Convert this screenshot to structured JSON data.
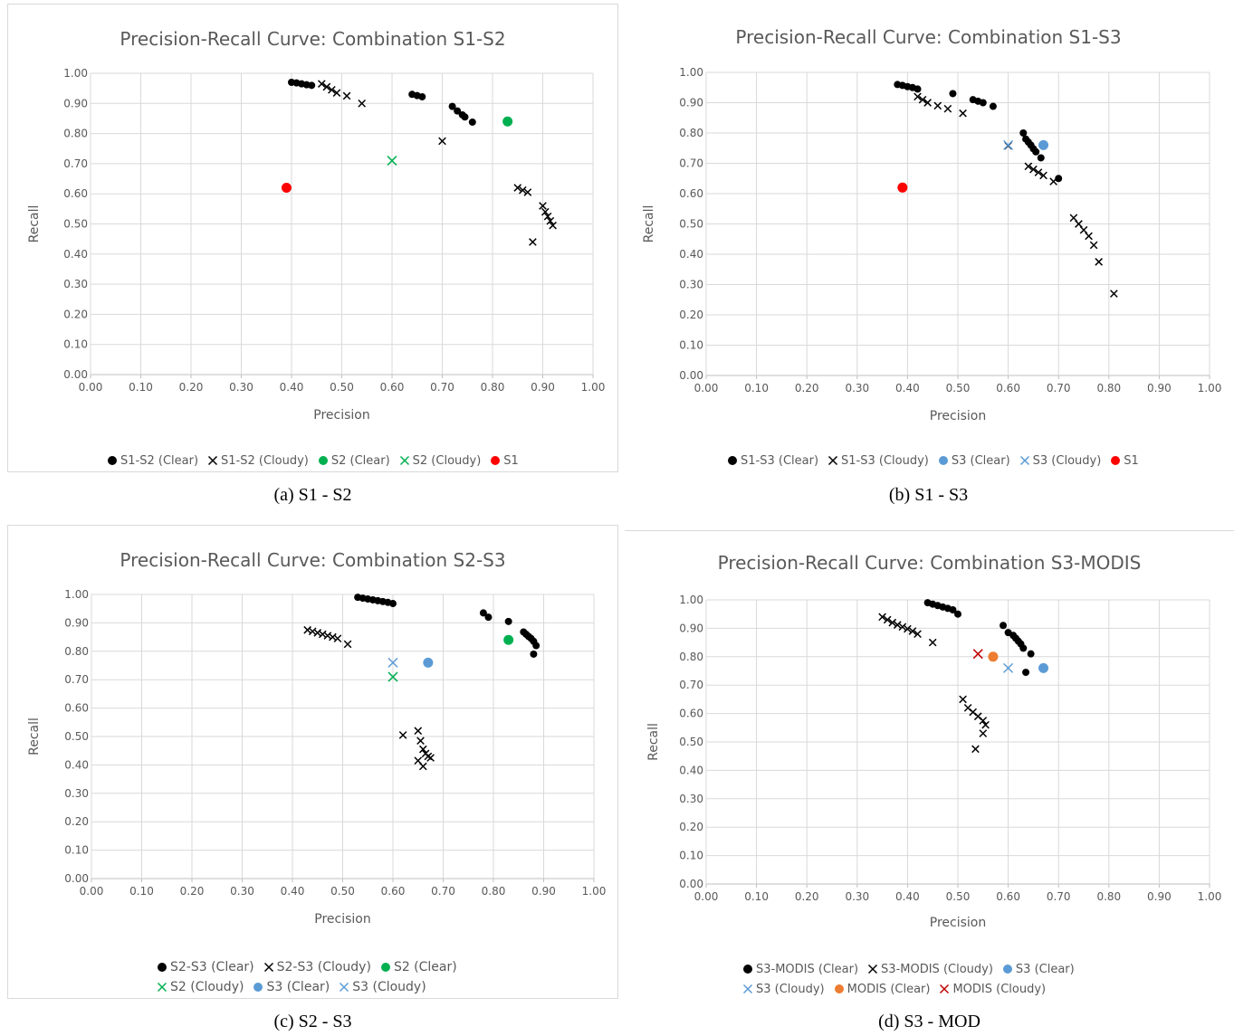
{
  "captions": [
    "(a) S1 - S2",
    "(b) S1 - S3",
    "(c) S2 - S3",
    "(d) S3 - MOD"
  ],
  "chart_data": [
    {
      "type": "scatter",
      "title": "Precision-Recall Curve: Combination S1-S2",
      "xlabel": "Precision",
      "ylabel": "Recall",
      "xlim": [
        0,
        1
      ],
      "ylim": [
        0,
        1
      ],
      "xticks": [
        "0.00",
        "0.10",
        "0.20",
        "0.30",
        "0.40",
        "0.50",
        "0.60",
        "0.70",
        "0.80",
        "0.90",
        "1.00"
      ],
      "yticks": [
        "0.00",
        "0.10",
        "0.20",
        "0.30",
        "0.40",
        "0.50",
        "0.60",
        "0.70",
        "0.80",
        "0.90",
        "1.00"
      ],
      "grid": true,
      "legend_position": "bottom",
      "series": [
        {
          "name": "S1-S2 (Clear)",
          "marker": "dot",
          "color": "#000000",
          "points": [
            [
              0.4,
              0.97
            ],
            [
              0.41,
              0.968
            ],
            [
              0.42,
              0.965
            ],
            [
              0.43,
              0.962
            ],
            [
              0.44,
              0.96
            ],
            [
              0.64,
              0.93
            ],
            [
              0.65,
              0.926
            ],
            [
              0.66,
              0.922
            ],
            [
              0.72,
              0.89
            ],
            [
              0.73,
              0.875
            ],
            [
              0.74,
              0.862
            ],
            [
              0.745,
              0.855
            ],
            [
              0.76,
              0.838
            ]
          ]
        },
        {
          "name": "S1-S2 (Cloudy)",
          "marker": "x",
          "color": "#000000",
          "points": [
            [
              0.46,
              0.965
            ],
            [
              0.47,
              0.955
            ],
            [
              0.48,
              0.945
            ],
            [
              0.49,
              0.935
            ],
            [
              0.51,
              0.925
            ],
            [
              0.54,
              0.9
            ],
            [
              0.7,
              0.775
            ],
            [
              0.85,
              0.62
            ],
            [
              0.86,
              0.612
            ],
            [
              0.87,
              0.605
            ],
            [
              0.88,
              0.44
            ],
            [
              0.9,
              0.56
            ],
            [
              0.905,
              0.54
            ],
            [
              0.91,
              0.525
            ],
            [
              0.915,
              0.51
            ],
            [
              0.92,
              0.495
            ]
          ]
        },
        {
          "name": "S2 (Clear)",
          "marker": "dot",
          "color": "#00b050",
          "points": [
            [
              0.83,
              0.84
            ]
          ]
        },
        {
          "name": "S2 (Cloudy)",
          "marker": "x",
          "color": "#00b050",
          "points": [
            [
              0.6,
              0.71
            ]
          ]
        },
        {
          "name": "S1",
          "marker": "dot",
          "color": "#ff0000",
          "points": [
            [
              0.39,
              0.62
            ]
          ]
        }
      ]
    },
    {
      "type": "scatter",
      "title": "Precision-Recall Curve: Combination S1-S3",
      "xlabel": "Precision",
      "ylabel": "Recall",
      "xlim": [
        0,
        1
      ],
      "ylim": [
        0,
        1
      ],
      "xticks": [
        "0.00",
        "0.10",
        "0.20",
        "0.30",
        "0.40",
        "0.50",
        "0.60",
        "0.70",
        "0.80",
        "0.90",
        "1.00"
      ],
      "yticks": [
        "0.00",
        "0.10",
        "0.20",
        "0.30",
        "0.40",
        "0.50",
        "0.60",
        "0.70",
        "0.80",
        "0.90",
        "1.00"
      ],
      "grid": true,
      "legend_position": "bottom",
      "series": [
        {
          "name": "S1-S3 (Clear)",
          "marker": "dot",
          "color": "#000000",
          "points": [
            [
              0.38,
              0.96
            ],
            [
              0.39,
              0.957
            ],
            [
              0.4,
              0.953
            ],
            [
              0.41,
              0.95
            ],
            [
              0.42,
              0.945
            ],
            [
              0.49,
              0.93
            ],
            [
              0.53,
              0.91
            ],
            [
              0.54,
              0.905
            ],
            [
              0.55,
              0.9
            ],
            [
              0.57,
              0.888
            ],
            [
              0.63,
              0.8
            ],
            [
              0.635,
              0.78
            ],
            [
              0.64,
              0.77
            ],
            [
              0.645,
              0.76
            ],
            [
              0.65,
              0.748
            ],
            [
              0.655,
              0.738
            ],
            [
              0.665,
              0.718
            ],
            [
              0.7,
              0.65
            ]
          ]
        },
        {
          "name": "S1-S3 (Cloudy)",
          "marker": "x",
          "color": "#000000",
          "points": [
            [
              0.42,
              0.92
            ],
            [
              0.43,
              0.91
            ],
            [
              0.44,
              0.9
            ],
            [
              0.46,
              0.89
            ],
            [
              0.48,
              0.88
            ],
            [
              0.51,
              0.865
            ],
            [
              0.6,
              0.758
            ],
            [
              0.64,
              0.69
            ],
            [
              0.65,
              0.68
            ],
            [
              0.66,
              0.67
            ],
            [
              0.67,
              0.66
            ],
            [
              0.69,
              0.64
            ],
            [
              0.73,
              0.52
            ],
            [
              0.74,
              0.5
            ],
            [
              0.75,
              0.48
            ],
            [
              0.76,
              0.46
            ],
            [
              0.77,
              0.43
            ],
            [
              0.78,
              0.375
            ],
            [
              0.81,
              0.27
            ]
          ]
        },
        {
          "name": "S3 (Clear)",
          "marker": "dot",
          "color": "#5b9bd5",
          "points": [
            [
              0.67,
              0.76
            ]
          ]
        },
        {
          "name": "S3 (Cloudy)",
          "marker": "x",
          "color": "#5b9bd5",
          "points": [
            [
              0.6,
              0.76
            ]
          ]
        },
        {
          "name": "S1",
          "marker": "dot",
          "color": "#ff0000",
          "points": [
            [
              0.39,
              0.62
            ]
          ]
        }
      ]
    },
    {
      "type": "scatter",
      "title": "Precision-Recall Curve: Combination S2-S3",
      "xlabel": "Precision",
      "ylabel": "Recall",
      "xlim": [
        0,
        1
      ],
      "ylim": [
        0,
        1
      ],
      "xticks": [
        "0.00",
        "0.10",
        "0.20",
        "0.30",
        "0.40",
        "0.50",
        "0.60",
        "0.70",
        "0.80",
        "0.90",
        "1.00"
      ],
      "yticks": [
        "0.00",
        "0.10",
        "0.20",
        "0.30",
        "0.40",
        "0.50",
        "0.60",
        "0.70",
        "0.80",
        "0.90",
        "1.00"
      ],
      "grid": true,
      "legend_position": "bottom",
      "series": [
        {
          "name": "S2-S3 (Clear)",
          "marker": "dot",
          "color": "#000000",
          "points": [
            [
              0.53,
              0.99
            ],
            [
              0.54,
              0.987
            ],
            [
              0.55,
              0.984
            ],
            [
              0.56,
              0.981
            ],
            [
              0.57,
              0.978
            ],
            [
              0.58,
              0.975
            ],
            [
              0.59,
              0.972
            ],
            [
              0.6,
              0.968
            ],
            [
              0.78,
              0.935
            ],
            [
              0.79,
              0.92
            ],
            [
              0.83,
              0.905
            ],
            [
              0.86,
              0.868
            ],
            [
              0.865,
              0.86
            ],
            [
              0.87,
              0.852
            ],
            [
              0.875,
              0.845
            ],
            [
              0.88,
              0.835
            ],
            [
              0.885,
              0.82
            ],
            [
              0.88,
              0.79
            ]
          ]
        },
        {
          "name": "S2-S3 (Cloudy)",
          "marker": "x",
          "color": "#000000",
          "points": [
            [
              0.43,
              0.875
            ],
            [
              0.44,
              0.87
            ],
            [
              0.45,
              0.865
            ],
            [
              0.46,
              0.86
            ],
            [
              0.47,
              0.855
            ],
            [
              0.48,
              0.85
            ],
            [
              0.49,
              0.845
            ],
            [
              0.51,
              0.825
            ],
            [
              0.62,
              0.505
            ],
            [
              0.65,
              0.52
            ],
            [
              0.655,
              0.485
            ],
            [
              0.66,
              0.455
            ],
            [
              0.665,
              0.44
            ],
            [
              0.67,
              0.43
            ],
            [
              0.65,
              0.415
            ],
            [
              0.66,
              0.395
            ],
            [
              0.675,
              0.425
            ]
          ]
        },
        {
          "name": "S2 (Clear)",
          "marker": "dot",
          "color": "#00b050",
          "points": [
            [
              0.83,
              0.84
            ]
          ]
        },
        {
          "name": "S2 (Cloudy)",
          "marker": "x",
          "color": "#00b050",
          "points": [
            [
              0.6,
              0.71
            ]
          ]
        },
        {
          "name": "S3 (Clear)",
          "marker": "dot",
          "color": "#5b9bd5",
          "points": [
            [
              0.67,
              0.76
            ]
          ]
        },
        {
          "name": "S3 (Cloudy)",
          "marker": "x",
          "color": "#5b9bd5",
          "points": [
            [
              0.6,
              0.76
            ]
          ]
        }
      ]
    },
    {
      "type": "scatter",
      "title": "Precision-Recall Curve: Combination S3-MODIS",
      "xlabel": "Precision",
      "ylabel": "Recall",
      "xlim": [
        0,
        1
      ],
      "ylim": [
        0,
        1
      ],
      "xticks": [
        "0.00",
        "0.10",
        "0.20",
        "0.30",
        "0.40",
        "0.50",
        "0.60",
        "0.70",
        "0.80",
        "0.90",
        "1.00"
      ],
      "yticks": [
        "0.00",
        "0.10",
        "0.20",
        "0.30",
        "0.40",
        "0.50",
        "0.60",
        "0.70",
        "0.80",
        "0.90",
        "1.00"
      ],
      "grid": true,
      "legend_position": "bottom",
      "series": [
        {
          "name": "S3-MODIS (Clear)",
          "marker": "dot",
          "color": "#000000",
          "points": [
            [
              0.44,
              0.99
            ],
            [
              0.45,
              0.985
            ],
            [
              0.46,
              0.98
            ],
            [
              0.47,
              0.975
            ],
            [
              0.48,
              0.97
            ],
            [
              0.49,
              0.965
            ],
            [
              0.5,
              0.95
            ],
            [
              0.59,
              0.91
            ],
            [
              0.6,
              0.885
            ],
            [
              0.61,
              0.875
            ],
            [
              0.615,
              0.865
            ],
            [
              0.62,
              0.855
            ],
            [
              0.625,
              0.845
            ],
            [
              0.63,
              0.83
            ],
            [
              0.645,
              0.81
            ],
            [
              0.635,
              0.745
            ]
          ]
        },
        {
          "name": "S3-MODIS (Cloudy)",
          "marker": "x",
          "color": "#000000",
          "points": [
            [
              0.35,
              0.94
            ],
            [
              0.36,
              0.93
            ],
            [
              0.37,
              0.92
            ],
            [
              0.38,
              0.912
            ],
            [
              0.39,
              0.905
            ],
            [
              0.4,
              0.898
            ],
            [
              0.41,
              0.89
            ],
            [
              0.42,
              0.88
            ],
            [
              0.45,
              0.85
            ],
            [
              0.51,
              0.65
            ],
            [
              0.52,
              0.62
            ],
            [
              0.53,
              0.605
            ],
            [
              0.54,
              0.59
            ],
            [
              0.55,
              0.575
            ],
            [
              0.555,
              0.56
            ],
            [
              0.55,
              0.53
            ],
            [
              0.535,
              0.475
            ]
          ]
        },
        {
          "name": "S3 (Clear)",
          "marker": "dot",
          "color": "#5b9bd5",
          "points": [
            [
              0.67,
              0.76
            ]
          ]
        },
        {
          "name": "S3 (Cloudy)",
          "marker": "x",
          "color": "#5b9bd5",
          "points": [
            [
              0.6,
              0.76
            ]
          ]
        },
        {
          "name": "MODIS (Clear)",
          "marker": "dot",
          "color": "#ed7d31",
          "points": [
            [
              0.57,
              0.8
            ]
          ]
        },
        {
          "name": "MODIS (Cloudy)",
          "marker": "x",
          "color": "#c00000",
          "points": [
            [
              0.54,
              0.81
            ]
          ]
        }
      ]
    }
  ]
}
